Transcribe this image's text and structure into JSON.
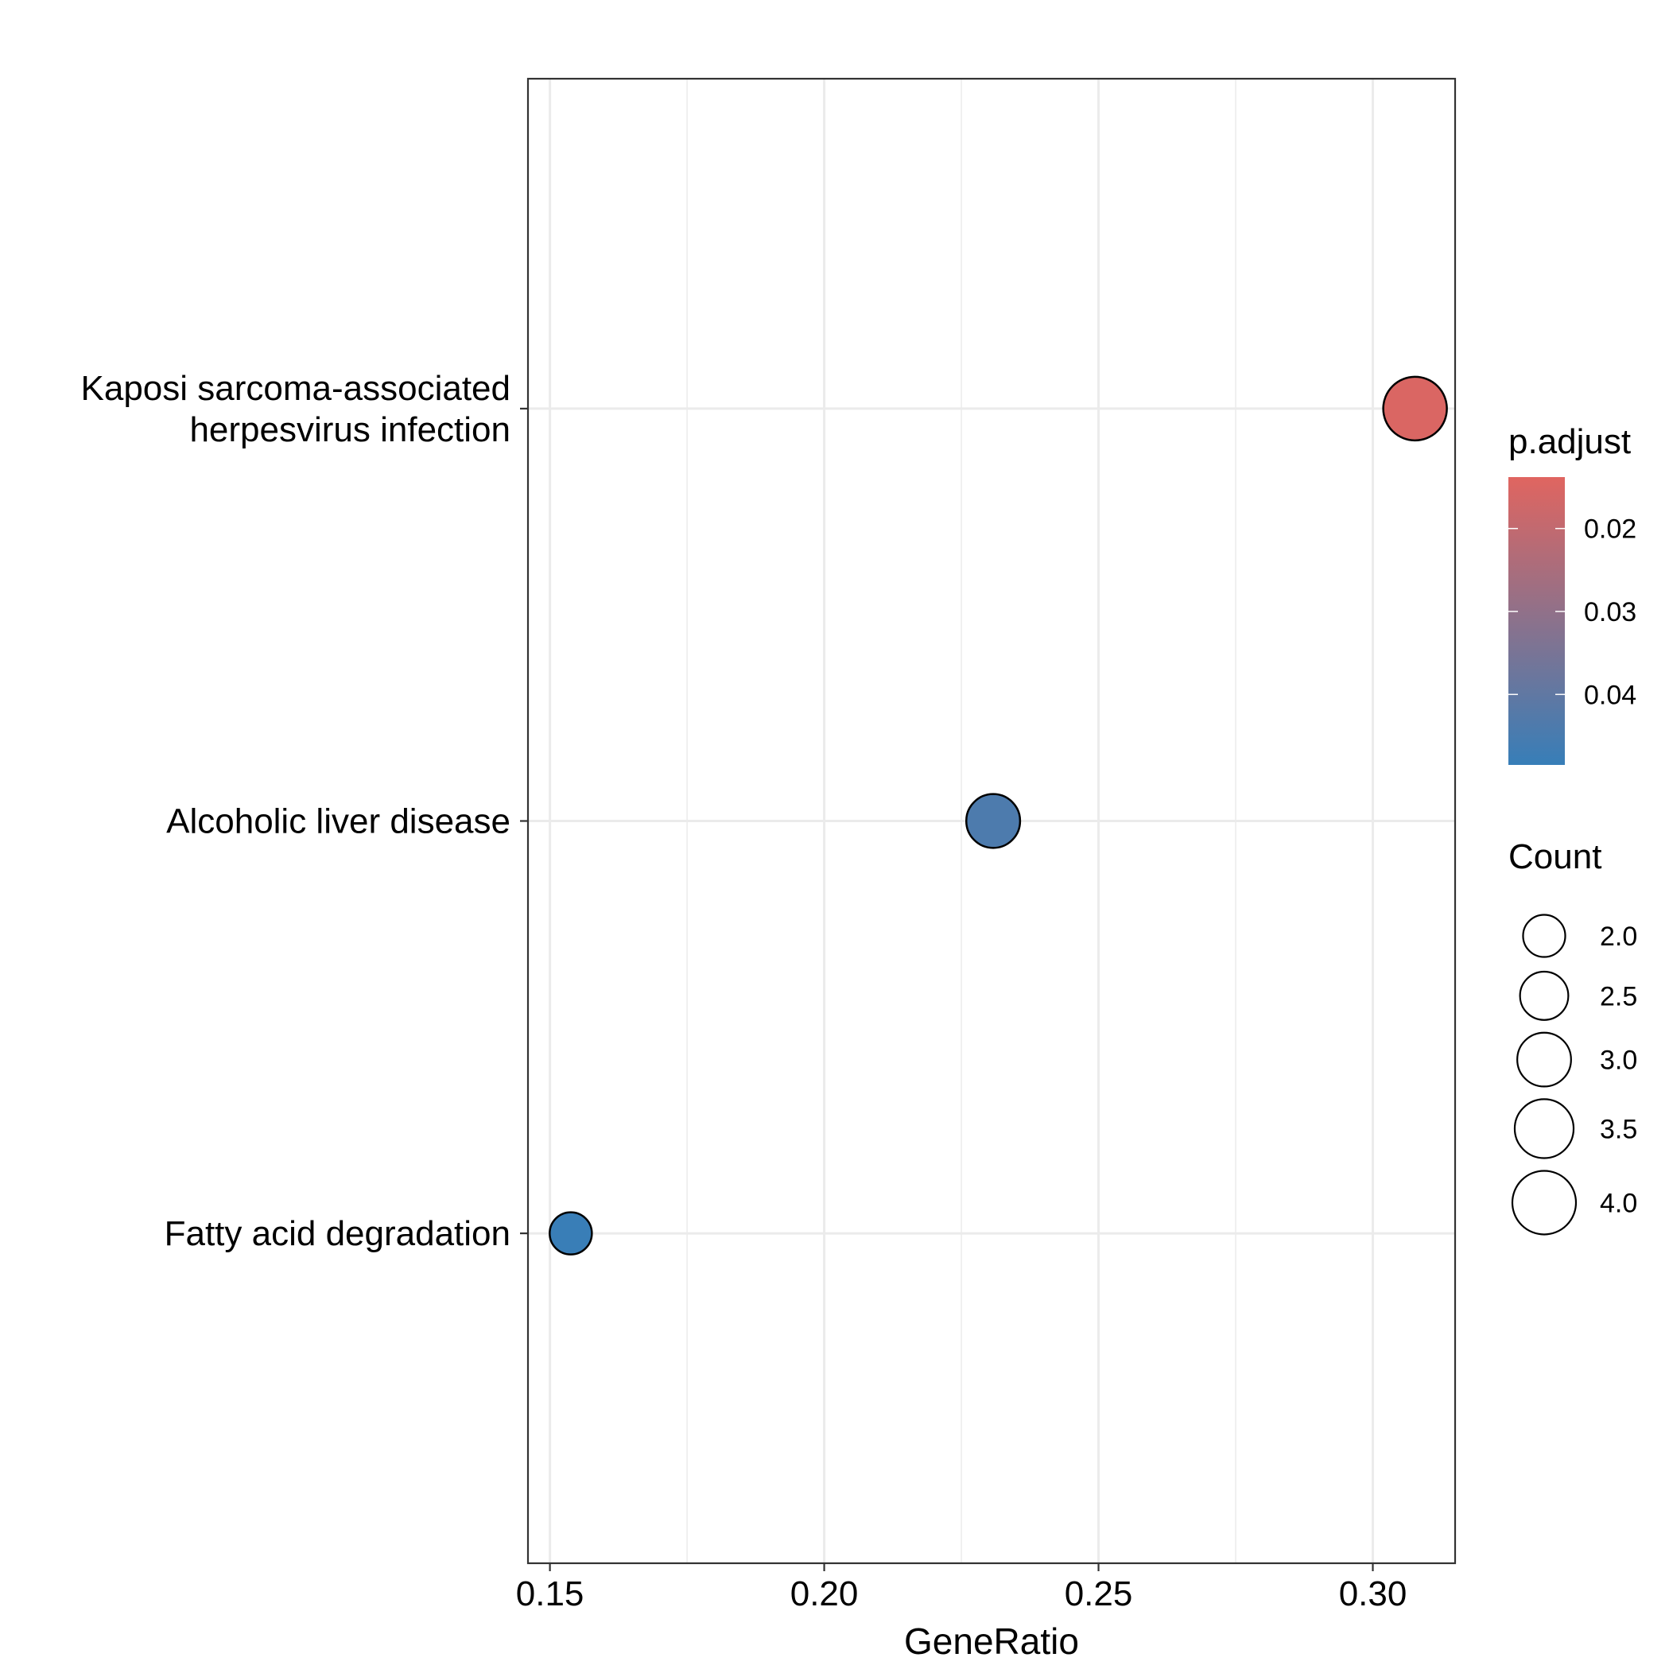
{
  "chart_data": {
    "type": "scatter",
    "title": "",
    "xlabel": "GeneRatio",
    "ylabel": "",
    "xlim": [
      0.146,
      0.315
    ],
    "x_ticks": [
      0.15,
      0.2,
      0.25,
      0.3
    ],
    "x_tick_labels": [
      "0.15",
      "0.20",
      "0.25",
      "0.30"
    ],
    "categories": [
      "Kaposi sarcoma-associated herpesvirus infection",
      "Alcoholic liver disease",
      "Fatty acid degradation"
    ],
    "category_label_lines": [
      [
        "Kaposi sarcoma-associated",
        "herpesvirus infection"
      ],
      [
        "Alcoholic liver disease"
      ],
      [
        "Fatty acid degradation"
      ]
    ],
    "points": [
      {
        "category": "Kaposi sarcoma-associated herpesvirus infection",
        "x": 0.3077,
        "count": 4,
        "p_adjust": 0.015
      },
      {
        "category": "Alcoholic liver disease",
        "x": 0.2308,
        "count": 3,
        "p_adjust": 0.044
      },
      {
        "category": "Fatty acid degradation",
        "x": 0.1538,
        "count": 2,
        "p_adjust": 0.048
      }
    ],
    "color_legend": {
      "title": "p.adjust",
      "ticks": [
        0.02,
        0.03,
        0.04
      ],
      "tick_labels": [
        "0.02",
        "0.03",
        "0.04"
      ],
      "low_color": "#E06560",
      "high_color": "#377EB8",
      "range": [
        0.0138,
        0.0485
      ]
    },
    "size_legend": {
      "title": "Count",
      "values": [
        2.0,
        2.5,
        3.0,
        3.5,
        4.0
      ],
      "labels": [
        "2.0",
        "2.5",
        "3.0",
        "3.5",
        "4.0"
      ]
    },
    "grid": true,
    "legend_position": "right"
  }
}
